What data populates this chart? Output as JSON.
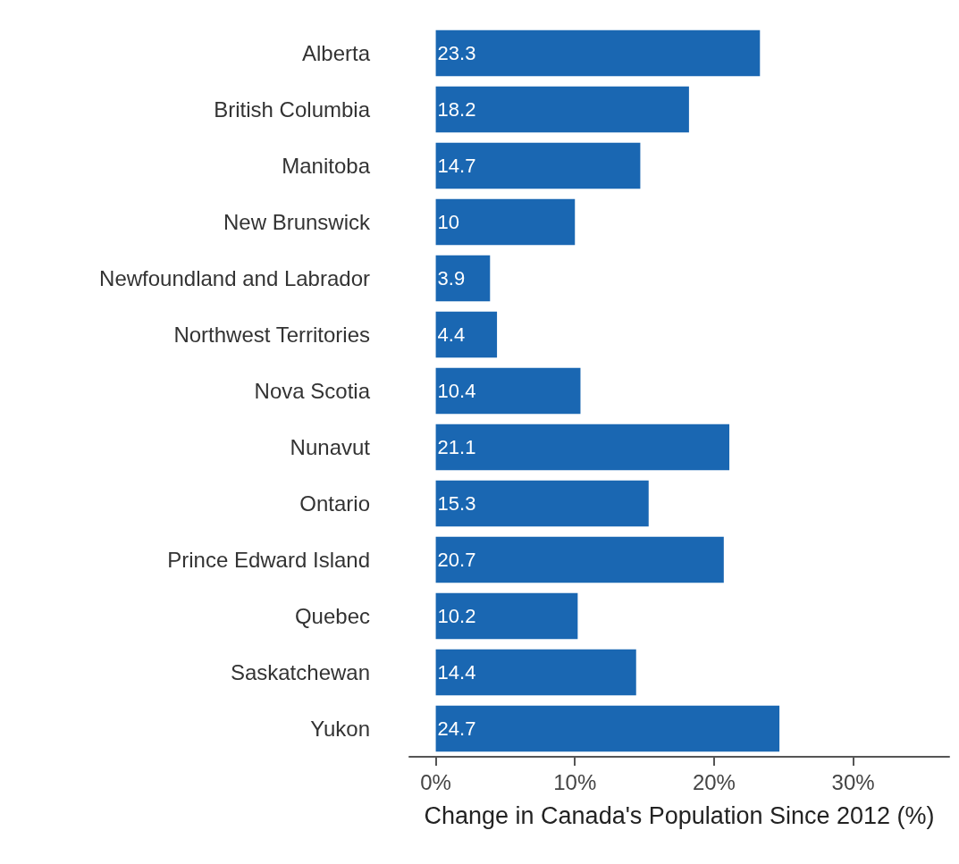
{
  "chart_data": {
    "type": "bar",
    "orientation": "horizontal",
    "xlabel": "Change in Canada's Population Since 2012 (%)",
    "categories": [
      "Alberta",
      "British Columbia",
      "Manitoba",
      "New Brunswick",
      "Newfoundland and Labrador",
      "Northwest Territories",
      "Nova Scotia",
      "Nunavut",
      "Ontario",
      "Prince Edward Island",
      "Quebec",
      "Saskatchewan",
      "Yukon"
    ],
    "values": [
      23.3,
      18.2,
      14.7,
      10,
      3.9,
      4.4,
      10.4,
      21.1,
      15.3,
      20.7,
      10.2,
      14.4,
      24.7
    ],
    "color": "#1a67b2",
    "data_labels": true,
    "grid": false,
    "xlim": [
      -1.9,
      36.9
    ],
    "xticks": [
      {
        "value": 0,
        "label": "0%"
      },
      {
        "value": 10,
        "label": "10%"
      },
      {
        "value": 20,
        "label": "20%"
      },
      {
        "value": 30,
        "label": "30%"
      }
    ]
  }
}
